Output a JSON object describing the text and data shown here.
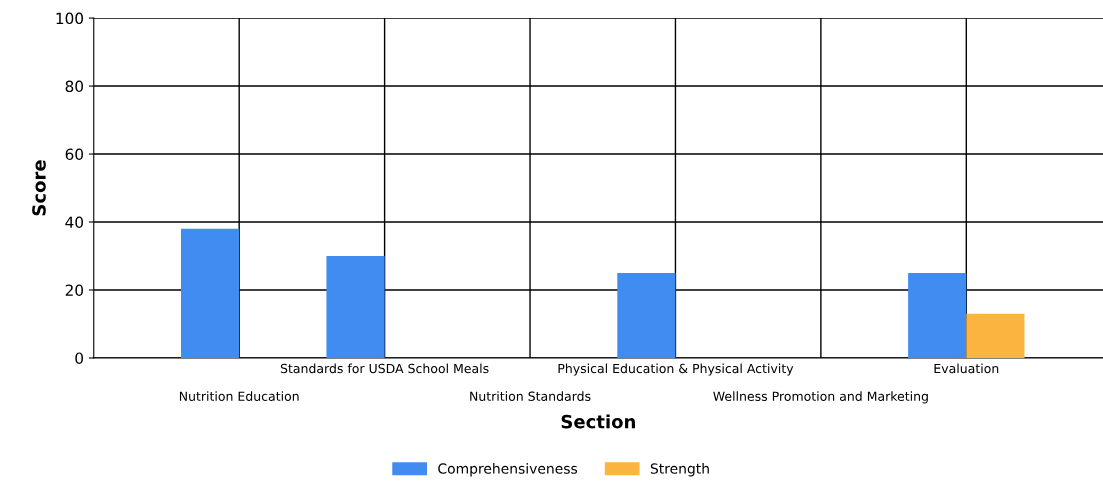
{
  "chart_data": {
    "type": "bar",
    "xlabel": "Section",
    "ylabel": "Score",
    "categories": [
      "Nutrition Education",
      "Standards for USDA School Meals",
      "Nutrition Standards",
      "Physical Education & Physical Activity",
      "Wellness Promotion and Marketing",
      "Evaluation"
    ],
    "series": [
      {
        "name": "Comprehensiveness",
        "color": "#418cf0",
        "values": [
          38,
          30,
          0,
          25,
          0,
          25
        ]
      },
      {
        "name": "Strength",
        "color": "#fcb441",
        "values": [
          0,
          0,
          0,
          0,
          0,
          13
        ]
      }
    ],
    "ylim": [
      0,
      100
    ],
    "yticks": [
      0,
      20,
      40,
      60,
      80,
      100
    ],
    "grid": true,
    "legend": "bottom"
  }
}
